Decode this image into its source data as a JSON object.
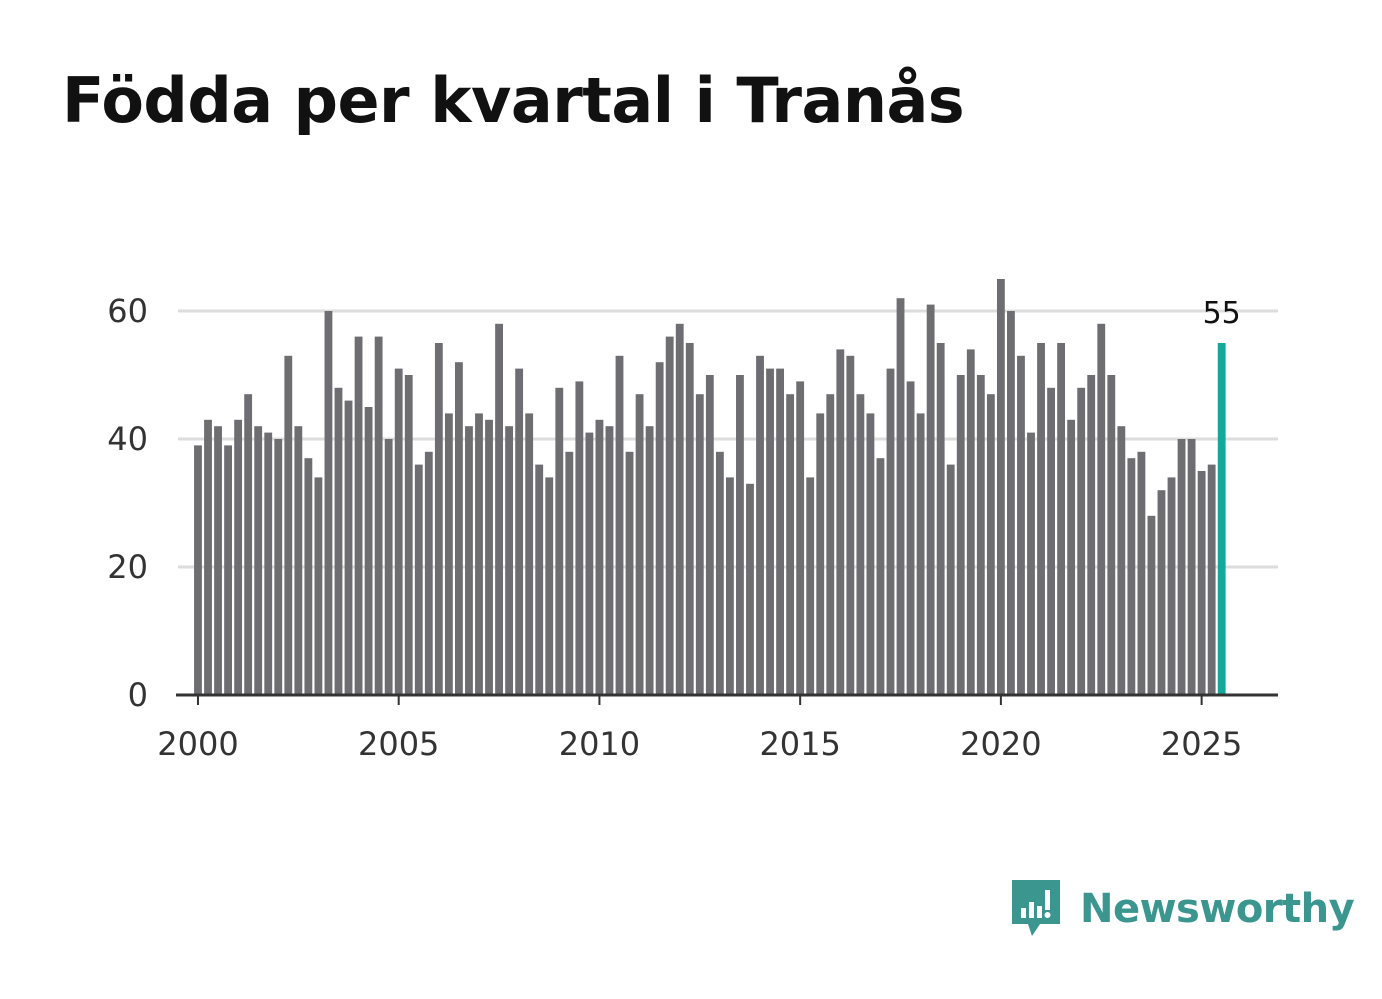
{
  "title": "Födda per kvartal i Tranås",
  "brand": {
    "name": "Newsworthy",
    "color": "#3a968f",
    "icon": "bar-chart-speech-bubble-icon"
  },
  "colors": {
    "bar": "#6e6e72",
    "highlight": "#15a79b",
    "grid": "#dddddd",
    "axis": "#333333"
  },
  "chart_data": {
    "type": "bar",
    "title": "Födda per kvartal i Tranås",
    "xlabel": "",
    "ylabel": "",
    "ylim": [
      0,
      66
    ],
    "yticks": [
      0,
      20,
      40,
      60
    ],
    "xticks": [
      2000,
      2005,
      2010,
      2015,
      2020,
      2025
    ],
    "xlim": [
      1999.6,
      2027
    ],
    "grid": true,
    "start_year": 2000,
    "quarters_per_year": 4,
    "highlight_label": "55",
    "values": [
      39,
      43,
      42,
      39,
      43,
      47,
      42,
      41,
      40,
      53,
      42,
      37,
      34,
      60,
      48,
      46,
      56,
      45,
      56,
      40,
      51,
      50,
      36,
      38,
      55,
      44,
      52,
      42,
      44,
      43,
      58,
      42,
      51,
      44,
      36,
      34,
      48,
      38,
      49,
      41,
      43,
      42,
      53,
      38,
      47,
      42,
      52,
      56,
      58,
      55,
      47,
      50,
      38,
      34,
      50,
      33,
      53,
      51,
      51,
      47,
      49,
      34,
      44,
      47,
      54,
      53,
      47,
      44,
      37,
      51,
      62,
      49,
      44,
      61,
      55,
      36,
      50,
      54,
      50,
      47,
      65,
      60,
      53,
      41,
      55,
      48,
      55,
      43,
      48,
      50,
      58,
      50,
      42,
      37,
      38,
      28,
      32,
      34,
      40,
      40,
      35,
      36,
      55
    ]
  }
}
